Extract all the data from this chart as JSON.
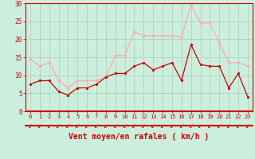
{
  "x": [
    0,
    1,
    2,
    3,
    4,
    5,
    6,
    7,
    8,
    9,
    10,
    11,
    12,
    13,
    14,
    15,
    16,
    17,
    18,
    19,
    20,
    21,
    22,
    23
  ],
  "wind_mean": [
    7.5,
    8.5,
    8.5,
    5.5,
    4.5,
    6.5,
    6.5,
    7.5,
    9.5,
    10.5,
    10.5,
    12.5,
    13.5,
    11.5,
    12.5,
    13.5,
    8.5,
    18.5,
    13.0,
    12.5,
    12.5,
    6.5,
    10.5,
    4.0
  ],
  "wind_gust": [
    14.5,
    12.5,
    13.5,
    8.5,
    6.5,
    8.5,
    8.5,
    8.5,
    9.5,
    15.5,
    15.5,
    22.0,
    21.0,
    21.0,
    21.0,
    21.0,
    20.5,
    29.5,
    24.5,
    24.5,
    19.0,
    13.5,
    13.5,
    12.5
  ],
  "mean_color": "#cc0000",
  "gust_color": "#ffaaaa",
  "bg_color": "#cceedd",
  "grid_color": "#aaccbb",
  "xlabel": "Vent moyen/en rafales ( km/h )",
  "xlabel_color": "#cc0000",
  "axis_color": "#cc0000",
  "tick_color": "#cc0000",
  "ylim": [
    0,
    30
  ],
  "xlim_min": -0.5,
  "xlim_max": 23.5,
  "yticks": [
    0,
    5,
    10,
    15,
    20,
    25,
    30
  ],
  "arrow_char": "↙"
}
